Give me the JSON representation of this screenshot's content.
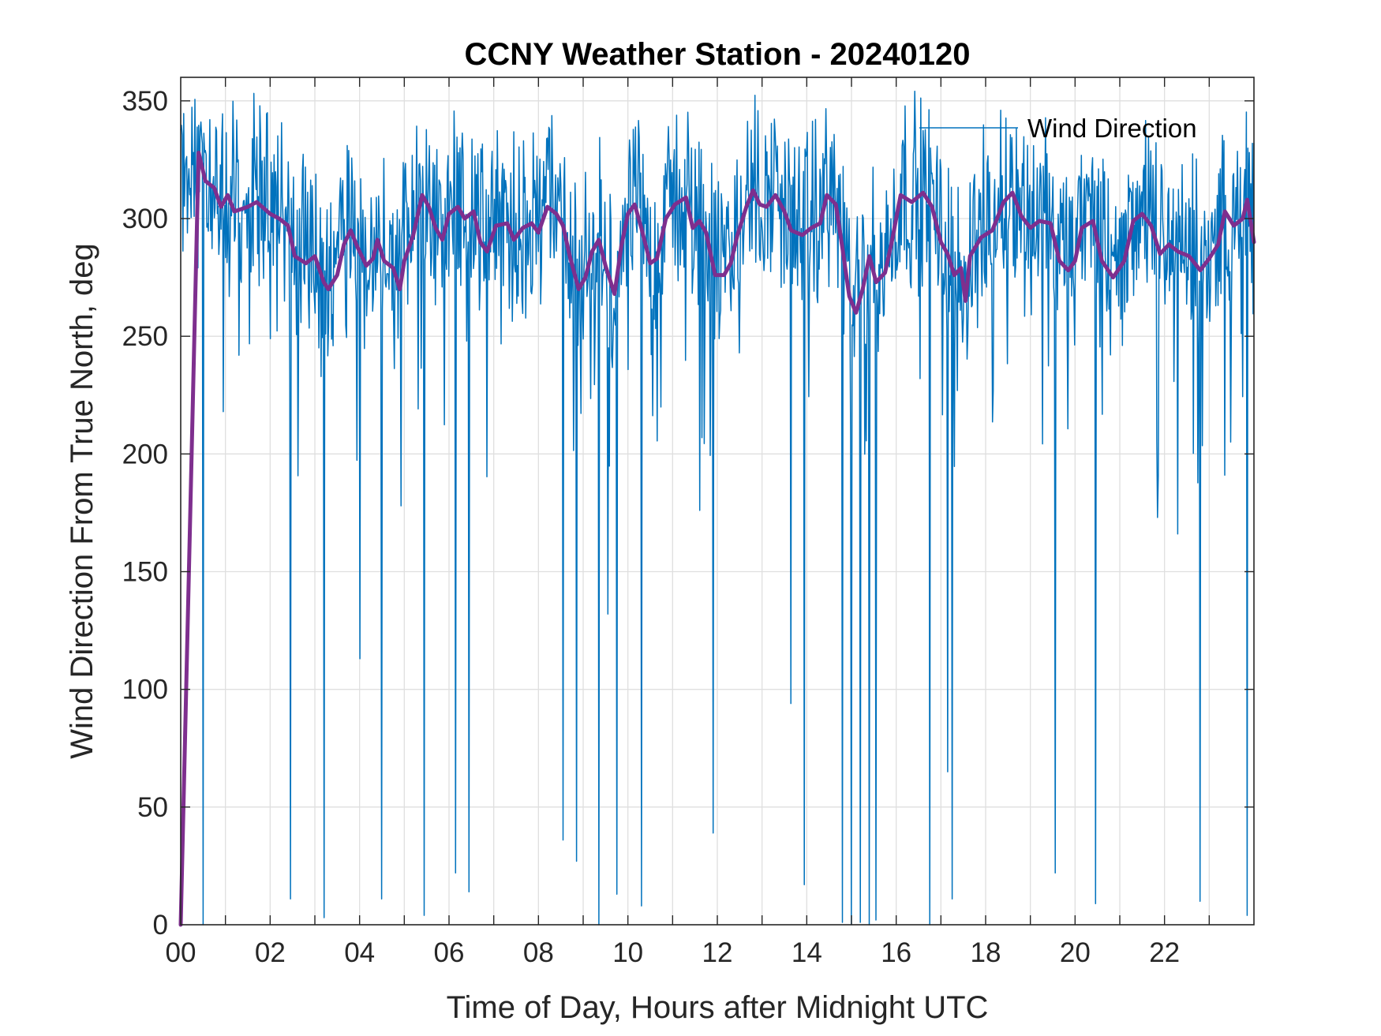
{
  "chart_data": {
    "type": "line",
    "title": "CCNY Weather Station - 20240120",
    "xlabel": "Time of Day, Hours after Midnight UTC",
    "ylabel": "Wind Direction From True North, deg",
    "xlim": [
      0,
      24
    ],
    "ylim": [
      0,
      360
    ],
    "x_ticks": [
      0,
      2,
      4,
      6,
      8,
      10,
      12,
      14,
      16,
      18,
      20,
      22
    ],
    "x_tick_labels": [
      "00",
      "02",
      "04",
      "06",
      "08",
      "10",
      "12",
      "14",
      "16",
      "18",
      "20",
      "22"
    ],
    "y_ticks": [
      0,
      50,
      100,
      150,
      200,
      250,
      300,
      350
    ],
    "y_tick_labels": [
      "0",
      "50",
      "100",
      "150",
      "200",
      "250",
      "300",
      "350"
    ],
    "grid": true,
    "legend": {
      "position": "top-right",
      "entries": [
        "Wind Direction"
      ]
    },
    "series": [
      {
        "name": "Wind Direction",
        "color": "#0072BD",
        "style": "thin-noisy",
        "sample_interval_hours": 0.0167,
        "note_values": "raw 1-minute samples fluctuating roughly 260-350 deg with sporadic drops; baseline follows the smoothed series",
        "dips": [
          {
            "x": 0.5,
            "y": 0
          },
          {
            "x": 2.45,
            "y": 11
          },
          {
            "x": 3.2,
            "y": 3
          },
          {
            "x": 4.0,
            "y": 113
          },
          {
            "x": 4.5,
            "y": 11
          },
          {
            "x": 5.45,
            "y": 4
          },
          {
            "x": 6.15,
            "y": 22
          },
          {
            "x": 6.45,
            "y": 14
          },
          {
            "x": 8.55,
            "y": 36
          },
          {
            "x": 8.85,
            "y": 27
          },
          {
            "x": 9.35,
            "y": 0
          },
          {
            "x": 9.55,
            "y": 132
          },
          {
            "x": 9.75,
            "y": 13
          },
          {
            "x": 10.3,
            "y": 8
          },
          {
            "x": 11.6,
            "y": 176
          },
          {
            "x": 11.9,
            "y": 39
          },
          {
            "x": 13.65,
            "y": 94
          },
          {
            "x": 13.95,
            "y": 17
          },
          {
            "x": 14.8,
            "y": 1
          },
          {
            "x": 15.0,
            "y": 0
          },
          {
            "x": 15.2,
            "y": 1
          },
          {
            "x": 15.4,
            "y": 0
          },
          {
            "x": 15.55,
            "y": 2
          },
          {
            "x": 16.75,
            "y": 0
          },
          {
            "x": 17.15,
            "y": 65
          },
          {
            "x": 17.25,
            "y": 11
          },
          {
            "x": 19.55,
            "y": 22
          },
          {
            "x": 20.45,
            "y": 9
          },
          {
            "x": 21.85,
            "y": 173
          },
          {
            "x": 22.3,
            "y": 166
          },
          {
            "x": 22.8,
            "y": 10
          },
          {
            "x": 23.35,
            "y": 191
          },
          {
            "x": 23.85,
            "y": 4
          }
        ]
      },
      {
        "name": "",
        "color": "#7E2F8E",
        "style": "thick-smoothed",
        "points": [
          [
            0.0,
            0
          ],
          [
            0.4,
            328
          ],
          [
            0.55,
            316
          ],
          [
            0.75,
            313
          ],
          [
            0.9,
            305
          ],
          [
            1.05,
            310
          ],
          [
            1.2,
            303
          ],
          [
            1.5,
            305
          ],
          [
            1.7,
            307
          ],
          [
            2.0,
            302
          ],
          [
            2.2,
            300
          ],
          [
            2.4,
            297
          ],
          [
            2.55,
            284
          ],
          [
            2.8,
            281
          ],
          [
            3.0,
            284
          ],
          [
            3.2,
            273
          ],
          [
            3.3,
            270
          ],
          [
            3.5,
            276
          ],
          [
            3.65,
            289
          ],
          [
            3.8,
            295
          ],
          [
            3.95,
            288
          ],
          [
            4.15,
            280
          ],
          [
            4.3,
            283
          ],
          [
            4.4,
            291
          ],
          [
            4.55,
            282
          ],
          [
            4.75,
            279
          ],
          [
            4.9,
            270
          ],
          [
            5.0,
            282
          ],
          [
            5.2,
            293
          ],
          [
            5.4,
            310
          ],
          [
            5.55,
            305
          ],
          [
            5.7,
            296
          ],
          [
            5.85,
            291
          ],
          [
            6.0,
            302
          ],
          [
            6.2,
            305
          ],
          [
            6.35,
            300
          ],
          [
            6.55,
            303
          ],
          [
            6.7,
            290
          ],
          [
            6.85,
            286
          ],
          [
            7.05,
            297
          ],
          [
            7.3,
            298
          ],
          [
            7.45,
            291
          ],
          [
            7.65,
            296
          ],
          [
            7.85,
            298
          ],
          [
            8.0,
            294
          ],
          [
            8.2,
            305
          ],
          [
            8.4,
            302
          ],
          [
            8.55,
            297
          ],
          [
            8.7,
            284
          ],
          [
            8.9,
            270
          ],
          [
            9.05,
            275
          ],
          [
            9.2,
            286
          ],
          [
            9.35,
            291
          ],
          [
            9.5,
            280
          ],
          [
            9.7,
            268
          ],
          [
            9.85,
            288
          ],
          [
            10.0,
            302
          ],
          [
            10.15,
            306
          ],
          [
            10.3,
            296
          ],
          [
            10.5,
            281
          ],
          [
            10.65,
            283
          ],
          [
            10.85,
            300
          ],
          [
            11.05,
            306
          ],
          [
            11.3,
            309
          ],
          [
            11.45,
            296
          ],
          [
            11.6,
            299
          ],
          [
            11.75,
            294
          ],
          [
            11.95,
            276
          ],
          [
            12.15,
            276
          ],
          [
            12.3,
            281
          ],
          [
            12.45,
            293
          ],
          [
            12.65,
            305
          ],
          [
            12.8,
            312
          ],
          [
            12.95,
            306
          ],
          [
            13.1,
            305
          ],
          [
            13.3,
            310
          ],
          [
            13.5,
            303
          ],
          [
            13.65,
            295
          ],
          [
            13.9,
            293
          ],
          [
            14.1,
            296
          ],
          [
            14.3,
            298
          ],
          [
            14.45,
            310
          ],
          [
            14.65,
            306
          ],
          [
            14.8,
            287
          ],
          [
            14.95,
            267
          ],
          [
            15.1,
            260
          ],
          [
            15.25,
            270
          ],
          [
            15.4,
            284
          ],
          [
            15.55,
            273
          ],
          [
            15.75,
            277
          ],
          [
            15.9,
            290
          ],
          [
            16.1,
            310
          ],
          [
            16.35,
            307
          ],
          [
            16.6,
            311
          ],
          [
            16.8,
            305
          ],
          [
            17.0,
            290
          ],
          [
            17.15,
            285
          ],
          [
            17.3,
            276
          ],
          [
            17.45,
            279
          ],
          [
            17.55,
            265
          ],
          [
            17.65,
            284
          ],
          [
            17.9,
            292
          ],
          [
            18.15,
            295
          ],
          [
            18.4,
            307
          ],
          [
            18.6,
            311
          ],
          [
            18.8,
            301
          ],
          [
            19.0,
            296
          ],
          [
            19.2,
            299
          ],
          [
            19.45,
            298
          ],
          [
            19.65,
            282
          ],
          [
            19.85,
            278
          ],
          [
            20.0,
            282
          ],
          [
            20.15,
            296
          ],
          [
            20.4,
            299
          ],
          [
            20.6,
            282
          ],
          [
            20.85,
            275
          ],
          [
            21.1,
            282
          ],
          [
            21.3,
            299
          ],
          [
            21.5,
            302
          ],
          [
            21.7,
            297
          ],
          [
            21.9,
            285
          ],
          [
            22.1,
            289
          ],
          [
            22.3,
            286
          ],
          [
            22.55,
            284
          ],
          [
            22.8,
            278
          ],
          [
            23.0,
            283
          ],
          [
            23.2,
            289
          ],
          [
            23.35,
            303
          ],
          [
            23.55,
            297
          ],
          [
            23.75,
            300
          ],
          [
            23.85,
            308
          ],
          [
            24.0,
            290
          ]
        ]
      }
    ]
  }
}
